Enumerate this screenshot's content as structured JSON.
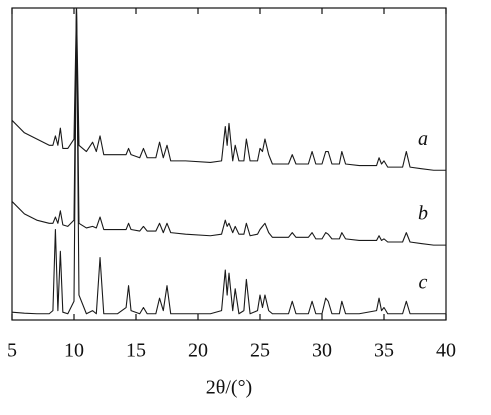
{
  "chart_data": {
    "type": "line",
    "xlabel": "2θ/(°)",
    "x": [
      5,
      6,
      7,
      8,
      8.3,
      8.5,
      8.7,
      8.9,
      9.1,
      9.5,
      10.0,
      10.2,
      10.4,
      11.0,
      11.5,
      11.8,
      12.1,
      12.4,
      13.5,
      14.2,
      14.4,
      14.6,
      15.3,
      15.6,
      15.9,
      16.6,
      16.9,
      17.2,
      17.5,
      17.8,
      19,
      21,
      21.9,
      22.2,
      22.35,
      22.5,
      22.8,
      23.0,
      23.3,
      23.7,
      23.9,
      24.2,
      24.8,
      25.0,
      25.2,
      25.4,
      25.7,
      26,
      27.3,
      27.6,
      27.9,
      28.9,
      29.2,
      29.5,
      30.0,
      30.3,
      30.5,
      30.8,
      31.4,
      31.6,
      31.9,
      33,
      34.4,
      34.6,
      34.8,
      35.0,
      35.3,
      36.5,
      36.8,
      37.1,
      38,
      39,
      40
    ],
    "series": [
      {
        "name": "a",
        "color": "#1a1a1a",
        "values": [
          64,
          60,
          58,
          56,
          56,
          59,
          56,
          61.5,
          55,
          55,
          58,
          100,
          56,
          54,
          57,
          54,
          59,
          53,
          53,
          53,
          55,
          53,
          52,
          55,
          52,
          52,
          57,
          52,
          56,
          51,
          51,
          50.5,
          51,
          62,
          56,
          63,
          51,
          56,
          51,
          51,
          58,
          51,
          51,
          55,
          54,
          58,
          53,
          50,
          50,
          53,
          50,
          50,
          54,
          50,
          50,
          54,
          54,
          50,
          50,
          54,
          50,
          49.5,
          49.5,
          52,
          50,
          51,
          49,
          49,
          54,
          49,
          48.5,
          48,
          48
        ]
      },
      {
        "name": "b",
        "color": "#1a1a1a",
        "values": [
          38,
          34,
          32,
          31,
          31,
          33,
          31,
          35,
          30.5,
          30,
          32,
          100,
          31,
          29.5,
          30,
          29.5,
          33,
          29,
          29,
          29,
          31,
          29,
          28.5,
          30,
          28.5,
          28.5,
          31,
          28,
          31,
          28,
          27.5,
          27,
          27.5,
          32,
          30,
          31,
          28,
          30,
          27.5,
          27.5,
          31,
          27,
          27.5,
          29,
          30,
          31,
          28,
          26.5,
          26.5,
          28,
          26.5,
          26.5,
          28,
          26,
          26,
          28,
          27.5,
          26,
          26,
          28,
          26,
          25.5,
          25.5,
          27,
          25.5,
          26,
          25,
          25,
          28,
          25,
          24.5,
          24,
          24
        ]
      },
      {
        "name": "c",
        "color": "#1a1a1a",
        "values": [
          2.5,
          2.2,
          2,
          2,
          3,
          29,
          3,
          22,
          2.5,
          2,
          6,
          100,
          8,
          2,
          3,
          2,
          20,
          2,
          2,
          4,
          11,
          3,
          2,
          4,
          2,
          2,
          7,
          3,
          11,
          2,
          2,
          2,
          3,
          16,
          8,
          15,
          3,
          10,
          2,
          3,
          13,
          2,
          3,
          8,
          4,
          8,
          3,
          2,
          2,
          6,
          2,
          2,
          6,
          2,
          2,
          7,
          6,
          2,
          2,
          6,
          2,
          2,
          3,
          7,
          3,
          4,
          2,
          2,
          6,
          2,
          2,
          2,
          2
        ]
      }
    ],
    "xlim": [
      5,
      40
    ],
    "xticks": [
      5,
      10,
      15,
      20,
      25,
      30,
      35,
      40
    ],
    "ylim": [
      0,
      100
    ]
  }
}
